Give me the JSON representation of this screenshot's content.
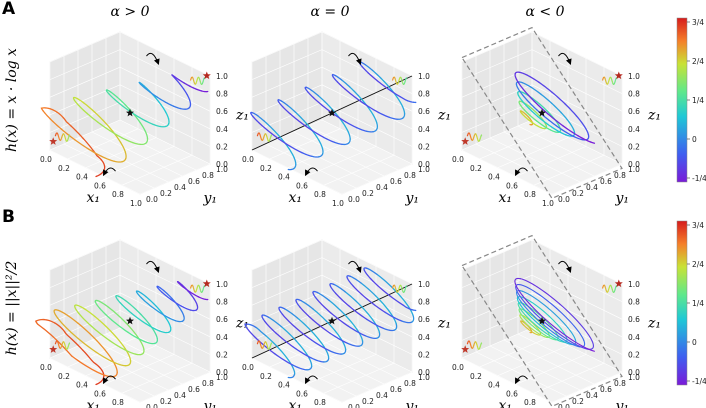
{
  "panel_letters": [
    "A",
    "B"
  ],
  "column_titles": [
    "α > 0",
    "α = 0",
    "α < 0"
  ],
  "row_labels": [
    "h(x) = x · log x",
    "h(x) = ||x||²/2"
  ],
  "axes": {
    "x_label": "x₁",
    "y_label": "y₁",
    "z_label": "z₁",
    "x_ticks": [
      "0.0",
      "0.2",
      "0.4",
      "0.6",
      "0.8",
      "1.0"
    ],
    "y_ticks": [
      "0.0",
      "0.2",
      "0.4",
      "0.6",
      "0.8",
      "1.0"
    ],
    "z_ticks": [
      "0.0",
      "0.2",
      "0.4",
      "0.6",
      "0.8",
      "1.0"
    ]
  },
  "colorbar": {
    "ticks": [
      "3/4",
      "2/4",
      "1/4",
      "0",
      "-1/4"
    ],
    "range": [
      -0.25,
      0.75
    ],
    "colors": [
      "#7a1bd8",
      "#3f5ef0",
      "#1fc8d6",
      "#5ee88c",
      "#c8e236",
      "#f57f2a",
      "#d61c1c"
    ]
  },
  "chart_data": {
    "type": "3d-line-grid",
    "rows": 2,
    "cols": 3,
    "cells": [
      {
        "row": "A",
        "alpha": "α > 0",
        "h": "x · log x",
        "regime": "spiral-in",
        "has_dashed_box": false
      },
      {
        "row": "A",
        "alpha": "α = 0",
        "h": "x · log x",
        "regime": "conservative-orbit",
        "has_dashed_box": false
      },
      {
        "row": "A",
        "alpha": "α < 0",
        "h": "x · log x",
        "regime": "spiral-out",
        "has_dashed_box": true
      },
      {
        "row": "B",
        "alpha": "α > 0",
        "h": "||x||²/2",
        "regime": "spiral-in",
        "has_dashed_box": false
      },
      {
        "row": "B",
        "alpha": "α = 0",
        "h": "||x||²/2",
        "regime": "conservative-orbit",
        "has_dashed_box": false
      },
      {
        "row": "B",
        "alpha": "α < 0",
        "h": "||x||²/2",
        "regime": "spiral-out",
        "has_dashed_box": true
      }
    ],
    "x_range": [
      0,
      1
    ],
    "y_range": [
      0,
      1
    ],
    "z_range": [
      0,
      1
    ],
    "color_range": [
      -0.25,
      0.75
    ]
  }
}
